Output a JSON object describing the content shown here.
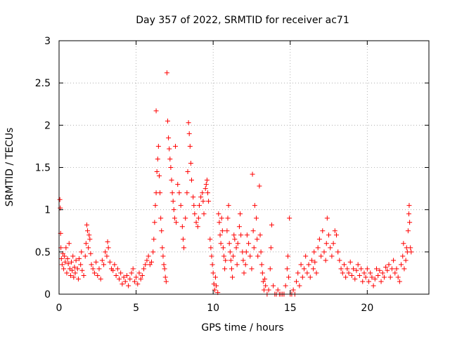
{
  "chart_data": {
    "type": "scatter",
    "title": "Day 357 of 2022, SRMTID for receiver ac71",
    "xlabel": "GPS time / hours",
    "ylabel": "SRMTID / TECUs",
    "xlim": [
      0,
      24
    ],
    "ylim": [
      0,
      3
    ],
    "xticks": [
      "0",
      "5",
      "10",
      "15",
      "20"
    ],
    "xtick_values": [
      0,
      5,
      10,
      15,
      20
    ],
    "yticks": [
      "0",
      "0.5",
      "1",
      "1.5",
      "2",
      "2.5",
      "3"
    ],
    "ytick_values": [
      0,
      0.5,
      1,
      1.5,
      2,
      2.5,
      3
    ],
    "grid": true,
    "marker": "+",
    "color": "#ff0000",
    "series": [
      {
        "name": "SRMTID",
        "points": [
          [
            0.05,
            1.12
          ],
          [
            0.08,
            1.02
          ],
          [
            0.1,
            0.72
          ],
          [
            0.12,
            0.55
          ],
          [
            0.15,
            0.42
          ],
          [
            0.2,
            0.35
          ],
          [
            0.25,
            0.48
          ],
          [
            0.3,
            0.3
          ],
          [
            0.35,
            0.45
          ],
          [
            0.4,
            0.38
          ],
          [
            0.45,
            0.55
          ],
          [
            0.5,
            0.25
          ],
          [
            0.55,
            0.42
          ],
          [
            0.6,
            0.36
          ],
          [
            0.65,
            0.6
          ],
          [
            0.7,
            0.3
          ],
          [
            0.75,
            0.22
          ],
          [
            0.8,
            0.38
          ],
          [
            0.85,
            0.28
          ],
          [
            0.9,
            0.45
          ],
          [
            0.95,
            0.2
          ],
          [
            1.0,
            0.32
          ],
          [
            1.05,
            0.25
          ],
          [
            1.1,
            0.4
          ],
          [
            1.2,
            0.3
          ],
          [
            1.25,
            0.18
          ],
          [
            1.3,
            0.42
          ],
          [
            1.4,
            0.35
          ],
          [
            1.45,
            0.5
          ],
          [
            1.5,
            0.28
          ],
          [
            1.6,
            0.22
          ],
          [
            1.7,
            0.45
          ],
          [
            1.75,
            0.6
          ],
          [
            1.8,
            0.82
          ],
          [
            1.85,
            0.75
          ],
          [
            1.9,
            0.55
          ],
          [
            1.95,
            0.7
          ],
          [
            2.0,
            0.65
          ],
          [
            2.05,
            0.48
          ],
          [
            2.1,
            0.35
          ],
          [
            2.2,
            0.3
          ],
          [
            2.3,
            0.25
          ],
          [
            2.4,
            0.38
          ],
          [
            2.5,
            0.22
          ],
          [
            2.6,
            0.3
          ],
          [
            2.7,
            0.18
          ],
          [
            2.8,
            0.4
          ],
          [
            2.9,
            0.35
          ],
          [
            3.0,
            0.5
          ],
          [
            3.1,
            0.45
          ],
          [
            3.15,
            0.62
          ],
          [
            3.2,
            0.55
          ],
          [
            3.3,
            0.38
          ],
          [
            3.4,
            0.3
          ],
          [
            3.5,
            0.28
          ],
          [
            3.6,
            0.35
          ],
          [
            3.7,
            0.22
          ],
          [
            3.8,
            0.3
          ],
          [
            3.9,
            0.18
          ],
          [
            4.0,
            0.25
          ],
          [
            4.1,
            0.12
          ],
          [
            4.2,
            0.2
          ],
          [
            4.3,
            0.15
          ],
          [
            4.4,
            0.22
          ],
          [
            4.5,
            0.1
          ],
          [
            4.6,
            0.18
          ],
          [
            4.7,
            0.25
          ],
          [
            4.8,
            0.3
          ],
          [
            4.9,
            0.15
          ],
          [
            5.0,
            0.2
          ],
          [
            5.1,
            0.12
          ],
          [
            5.2,
            0.25
          ],
          [
            5.3,
            0.18
          ],
          [
            5.4,
            0.22
          ],
          [
            5.5,
            0.3
          ],
          [
            5.6,
            0.35
          ],
          [
            5.7,
            0.4
          ],
          [
            5.8,
            0.45
          ],
          [
            5.9,
            0.35
          ],
          [
            6.0,
            0.38
          ],
          [
            6.1,
            0.5
          ],
          [
            6.15,
            0.65
          ],
          [
            6.2,
            0.85
          ],
          [
            6.25,
            1.05
          ],
          [
            6.3,
            1.2
          ],
          [
            6.35,
            1.45
          ],
          [
            6.4,
            1.6
          ],
          [
            6.45,
            1.75
          ],
          [
            6.5,
            1.4
          ],
          [
            6.55,
            1.2
          ],
          [
            6.6,
            0.9
          ],
          [
            6.65,
            0.75
          ],
          [
            6.7,
            0.55
          ],
          [
            6.75,
            0.45
          ],
          [
            6.8,
            0.35
          ],
          [
            6.85,
            0.3
          ],
          [
            6.9,
            0.2
          ],
          [
            6.95,
            0.15
          ],
          [
            6.3,
            2.17
          ],
          [
            7.0,
            2.62
          ],
          [
            7.05,
            2.05
          ],
          [
            7.1,
            1.85
          ],
          [
            7.15,
            1.72
          ],
          [
            7.2,
            1.6
          ],
          [
            7.25,
            1.5
          ],
          [
            7.3,
            1.35
          ],
          [
            7.35,
            1.2
          ],
          [
            7.4,
            1.1
          ],
          [
            7.45,
            1.0
          ],
          [
            7.5,
            0.9
          ],
          [
            7.55,
            1.75
          ],
          [
            7.6,
            0.85
          ],
          [
            7.7,
            1.3
          ],
          [
            7.8,
            1.2
          ],
          [
            7.9,
            1.05
          ],
          [
            8.0,
            0.8
          ],
          [
            8.05,
            0.65
          ],
          [
            8.1,
            0.55
          ],
          [
            8.2,
            0.9
          ],
          [
            8.3,
            1.2
          ],
          [
            8.35,
            1.45
          ],
          [
            8.4,
            2.03
          ],
          [
            8.45,
            1.9
          ],
          [
            8.5,
            1.75
          ],
          [
            8.55,
            1.55
          ],
          [
            8.6,
            1.35
          ],
          [
            8.7,
            1.15
          ],
          [
            8.75,
            1.05
          ],
          [
            8.8,
            0.95
          ],
          [
            8.9,
            0.85
          ],
          [
            9.0,
            0.8
          ],
          [
            9.05,
            0.9
          ],
          [
            9.1,
            1.05
          ],
          [
            9.2,
            1.15
          ],
          [
            9.3,
            1.2
          ],
          [
            9.35,
            1.1
          ],
          [
            9.4,
            0.95
          ],
          [
            9.5,
            1.25
          ],
          [
            9.55,
            1.3
          ],
          [
            9.6,
            1.35
          ],
          [
            9.65,
            1.2
          ],
          [
            9.7,
            1.1
          ],
          [
            9.8,
            0.65
          ],
          [
            9.85,
            0.55
          ],
          [
            9.9,
            0.45
          ],
          [
            9.95,
            0.35
          ],
          [
            10.0,
            0.25
          ],
          [
            10.05,
            0.12
          ],
          [
            10.1,
            0.05
          ],
          [
            10.15,
            0.2
          ],
          [
            10.2,
            0.1
          ],
          [
            10.3,
            0.02
          ],
          [
            10.35,
            0.95
          ],
          [
            10.4,
            0.85
          ],
          [
            10.45,
            0.7
          ],
          [
            10.5,
            0.6
          ],
          [
            10.55,
            0.9
          ],
          [
            10.6,
            0.75
          ],
          [
            10.65,
            0.55
          ],
          [
            10.7,
            0.45
          ],
          [
            10.75,
            0.3
          ],
          [
            10.8,
            0.4
          ],
          [
            10.9,
            0.75
          ],
          [
            10.95,
            0.9
          ],
          [
            11.0,
            1.05
          ],
          [
            11.05,
            0.6
          ],
          [
            11.1,
            0.5
          ],
          [
            11.15,
            0.4
          ],
          [
            11.2,
            0.3
          ],
          [
            11.25,
            0.2
          ],
          [
            11.3,
            0.45
          ],
          [
            11.35,
            0.7
          ],
          [
            11.4,
            0.65
          ],
          [
            11.5,
            0.55
          ],
          [
            11.55,
            0.35
          ],
          [
            11.6,
            0.6
          ],
          [
            11.7,
            0.8
          ],
          [
            11.75,
            0.95
          ],
          [
            11.8,
            0.7
          ],
          [
            11.9,
            0.5
          ],
          [
            11.95,
            0.4
          ],
          [
            12.0,
            0.25
          ],
          [
            12.1,
            0.35
          ],
          [
            12.15,
            0.5
          ],
          [
            12.2,
            0.7
          ],
          [
            12.3,
            0.6
          ],
          [
            12.4,
            0.45
          ],
          [
            12.5,
            0.3
          ],
          [
            12.55,
            1.42
          ],
          [
            12.6,
            0.75
          ],
          [
            12.65,
            0.55
          ],
          [
            12.7,
            1.05
          ],
          [
            12.8,
            0.9
          ],
          [
            12.85,
            0.65
          ],
          [
            12.9,
            0.45
          ],
          [
            13.0,
            1.28
          ],
          [
            13.05,
            0.7
          ],
          [
            13.1,
            0.5
          ],
          [
            13.15,
            0.35
          ],
          [
            13.2,
            0.25
          ],
          [
            13.25,
            0.15
          ],
          [
            13.3,
            0.05
          ],
          [
            13.35,
            0.18
          ],
          [
            13.4,
            0.1
          ],
          [
            13.5,
            0.0
          ],
          [
            13.6,
            0.05
          ],
          [
            13.7,
            0.3
          ],
          [
            13.75,
            0.55
          ],
          [
            13.8,
            0.82
          ],
          [
            13.9,
            0.1
          ],
          [
            14.0,
            0.0
          ],
          [
            14.1,
            0.0
          ],
          [
            14.2,
            0.05
          ],
          [
            14.3,
            0.0
          ],
          [
            14.4,
            0.0
          ],
          [
            14.5,
            0.0
          ],
          [
            14.6,
            0.0
          ],
          [
            14.7,
            0.1
          ],
          [
            14.8,
            0.3
          ],
          [
            14.85,
            0.45
          ],
          [
            14.9,
            0.2
          ],
          [
            14.95,
            0.9
          ],
          [
            15.0,
            0.0
          ],
          [
            15.1,
            0.0
          ],
          [
            15.2,
            0.05
          ],
          [
            15.3,
            0.0
          ],
          [
            15.4,
            0.15
          ],
          [
            15.5,
            0.25
          ],
          [
            15.6,
            0.1
          ],
          [
            15.7,
            0.35
          ],
          [
            15.8,
            0.2
          ],
          [
            15.9,
            0.3
          ],
          [
            16.0,
            0.45
          ],
          [
            16.1,
            0.25
          ],
          [
            16.2,
            0.35
          ],
          [
            16.3,
            0.2
          ],
          [
            16.4,
            0.4
          ],
          [
            16.5,
            0.3
          ],
          [
            16.55,
            0.5
          ],
          [
            16.6,
            0.38
          ],
          [
            16.7,
            0.25
          ],
          [
            16.8,
            0.55
          ],
          [
            16.9,
            0.65
          ],
          [
            17.0,
            0.45
          ],
          [
            17.1,
            0.75
          ],
          [
            17.2,
            0.5
          ],
          [
            17.3,
            0.4
          ],
          [
            17.35,
            0.6
          ],
          [
            17.4,
            0.9
          ],
          [
            17.5,
            0.7
          ],
          [
            17.6,
            0.55
          ],
          [
            17.7,
            0.45
          ],
          [
            17.8,
            0.6
          ],
          [
            17.9,
            0.75
          ],
          [
            18.0,
            0.7
          ],
          [
            18.1,
            0.5
          ],
          [
            18.2,
            0.4
          ],
          [
            18.3,
            0.3
          ],
          [
            18.4,
            0.25
          ],
          [
            18.5,
            0.35
          ],
          [
            18.6,
            0.2
          ],
          [
            18.7,
            0.3
          ],
          [
            18.8,
            0.25
          ],
          [
            18.9,
            0.38
          ],
          [
            19.0,
            0.22
          ],
          [
            19.1,
            0.3
          ],
          [
            19.2,
            0.18
          ],
          [
            19.3,
            0.28
          ],
          [
            19.4,
            0.35
          ],
          [
            19.5,
            0.22
          ],
          [
            19.6,
            0.3
          ],
          [
            19.7,
            0.15
          ],
          [
            19.8,
            0.25
          ],
          [
            19.9,
            0.2
          ],
          [
            20.0,
            0.3
          ],
          [
            20.1,
            0.15
          ],
          [
            20.2,
            0.25
          ],
          [
            20.3,
            0.2
          ],
          [
            20.4,
            0.1
          ],
          [
            20.5,
            0.18
          ],
          [
            20.6,
            0.3
          ],
          [
            20.7,
            0.22
          ],
          [
            20.8,
            0.28
          ],
          [
            20.9,
            0.15
          ],
          [
            21.0,
            0.25
          ],
          [
            21.1,
            0.2
          ],
          [
            21.2,
            0.32
          ],
          [
            21.3,
            0.28
          ],
          [
            21.4,
            0.35
          ],
          [
            21.5,
            0.2
          ],
          [
            21.6,
            0.3
          ],
          [
            21.7,
            0.4
          ],
          [
            21.8,
            0.25
          ],
          [
            21.9,
            0.3
          ],
          [
            22.0,
            0.2
          ],
          [
            22.1,
            0.15
          ],
          [
            22.2,
            0.35
          ],
          [
            22.3,
            0.45
          ],
          [
            22.35,
            0.6
          ],
          [
            22.4,
            0.3
          ],
          [
            22.5,
            0.4
          ],
          [
            22.55,
            0.55
          ],
          [
            22.6,
            0.5
          ],
          [
            22.65,
            0.75
          ],
          [
            22.7,
            0.95
          ],
          [
            22.72,
            1.05
          ],
          [
            22.75,
            0.85
          ],
          [
            22.8,
            0.55
          ],
          [
            22.85,
            0.5
          ]
        ]
      }
    ]
  }
}
